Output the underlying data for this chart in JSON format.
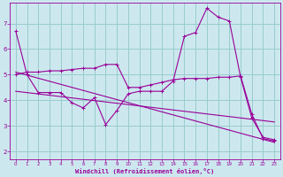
{
  "bg_color": "#cce8ee",
  "line_color": "#990099",
  "grid_color": "#99cccc",
  "xlabel": "Windchill (Refroidissement éolien,°C)",
  "xlabel_color": "#990099",
  "tick_color": "#990099",
  "xlim": [
    -0.5,
    23.5
  ],
  "ylim": [
    1.7,
    7.8
  ],
  "yticks": [
    2,
    3,
    4,
    5,
    6,
    7
  ],
  "xticks": [
    0,
    1,
    2,
    3,
    4,
    5,
    6,
    7,
    8,
    9,
    10,
    11,
    12,
    13,
    14,
    15,
    16,
    17,
    18,
    19,
    20,
    21,
    22,
    23
  ],
  "line1_x": [
    0,
    1,
    2,
    3,
    4,
    5,
    6,
    7,
    8,
    9,
    10,
    11,
    12,
    13,
    14,
    15,
    16,
    17,
    18,
    19,
    20,
    21,
    22,
    23
  ],
  "line1_y": [
    6.7,
    5.0,
    4.3,
    4.3,
    4.3,
    3.9,
    3.7,
    4.1,
    3.05,
    3.6,
    4.25,
    4.35,
    4.35,
    4.35,
    4.75,
    6.5,
    6.65,
    7.6,
    7.25,
    7.1,
    4.9,
    3.3,
    2.55,
    2.45
  ],
  "line2_x": [
    0,
    1,
    2,
    3,
    4,
    5,
    6,
    7,
    8,
    9,
    10,
    11,
    12,
    13,
    14,
    15,
    16,
    17,
    18,
    19,
    20,
    21,
    22,
    23
  ],
  "line2_y": [
    5.0,
    5.1,
    5.1,
    5.15,
    5.15,
    5.2,
    5.25,
    5.25,
    5.4,
    5.4,
    4.5,
    4.5,
    4.6,
    4.7,
    4.8,
    4.85,
    4.85,
    4.85,
    4.9,
    4.9,
    4.95,
    3.45,
    2.5,
    2.4
  ],
  "line3_x": [
    0,
    23
  ],
  "line3_y": [
    5.1,
    2.35
  ],
  "line4_x": [
    0,
    23
  ],
  "line4_y": [
    4.35,
    3.15
  ]
}
